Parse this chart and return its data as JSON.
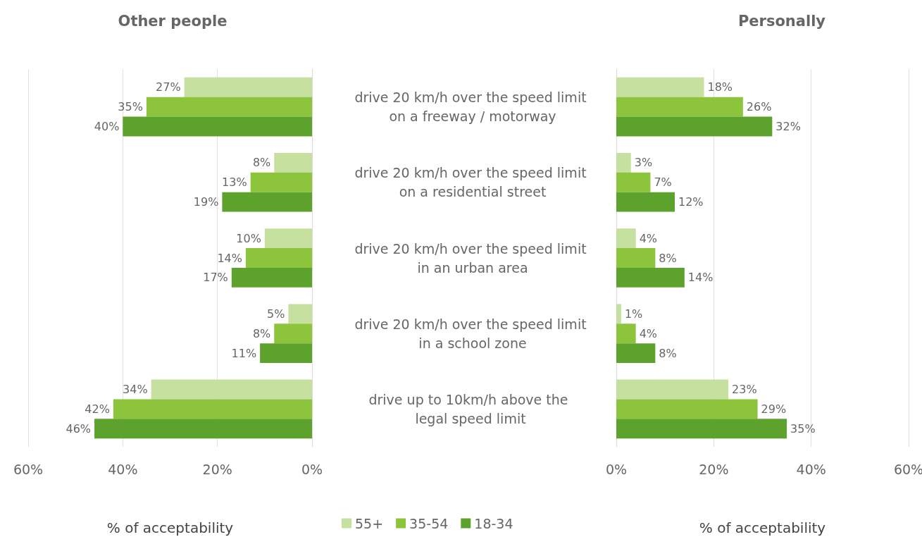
{
  "chart_data": [
    {
      "type": "bar",
      "orientation": "horizontal",
      "title": "Other people",
      "xlabel": "% of acceptability",
      "categories": [
        "drive 20 km/h over the speed limit on a freeway / motorway",
        "drive 20 km/h over the speed limit on a residential street",
        "drive 20 km/h over the speed limit in an urban area",
        "drive 20 km/h over the speed limit in a school zone",
        "drive up to 10km/h above the legal speed limit"
      ],
      "series": [
        {
          "name": "55+",
          "color": "#c6e0a0",
          "values": [
            27,
            8,
            10,
            5,
            34
          ],
          "value_labels": [
            "27%",
            "8%",
            "10%",
            "5%",
            "34%"
          ]
        },
        {
          "name": "35-54",
          "color": "#8cc43c",
          "values": [
            35,
            13,
            14,
            8,
            42
          ],
          "value_labels": [
            "35%",
            "13%",
            "14%",
            "8%",
            "42%"
          ]
        },
        {
          "name": "18-34",
          "color": "#5ea22e",
          "values": [
            40,
            19,
            17,
            11,
            46
          ],
          "value_labels": [
            "40%",
            "19%",
            "17%",
            "11%",
            "46%"
          ]
        }
      ],
      "xlim": [
        60,
        0
      ],
      "xticks": [
        {
          "value": 60,
          "label": "60%"
        },
        {
          "value": 40,
          "label": "40%"
        },
        {
          "value": 20,
          "label": "20%"
        },
        {
          "value": 0,
          "label": "0%"
        }
      ],
      "grid": "x",
      "legend": "bottom"
    },
    {
      "type": "bar",
      "orientation": "horizontal",
      "title": "Personally",
      "xlabel": "% of acceptability",
      "categories": [
        null,
        null,
        null,
        null,
        null
      ],
      "series": [
        {
          "color": "#c6e0a0",
          "values": [
            18,
            3,
            4,
            1,
            23
          ],
          "value_labels": [
            "18%",
            "3%",
            "4%",
            "1%",
            "23%"
          ]
        },
        {
          "color": "#8cc43c",
          "values": [
            26,
            7,
            8,
            4,
            29
          ],
          "value_labels": [
            "26%",
            "7%",
            "8%",
            "4%",
            "29%"
          ]
        },
        {
          "color": "#5ea22e",
          "values": [
            32,
            12,
            14,
            8,
            35
          ],
          "value_labels": [
            "32%",
            "12%",
            "14%",
            "8%",
            "35%"
          ]
        }
      ],
      "xlim": [
        0,
        60
      ],
      "xticks": [
        {
          "value": 0,
          "label": "0%"
        },
        {
          "value": 20,
          "label": "20%"
        },
        {
          "value": 40,
          "label": "40%"
        },
        {
          "value": 60,
          "label": "60%"
        }
      ],
      "grid": "x",
      "legend": false
    }
  ]
}
